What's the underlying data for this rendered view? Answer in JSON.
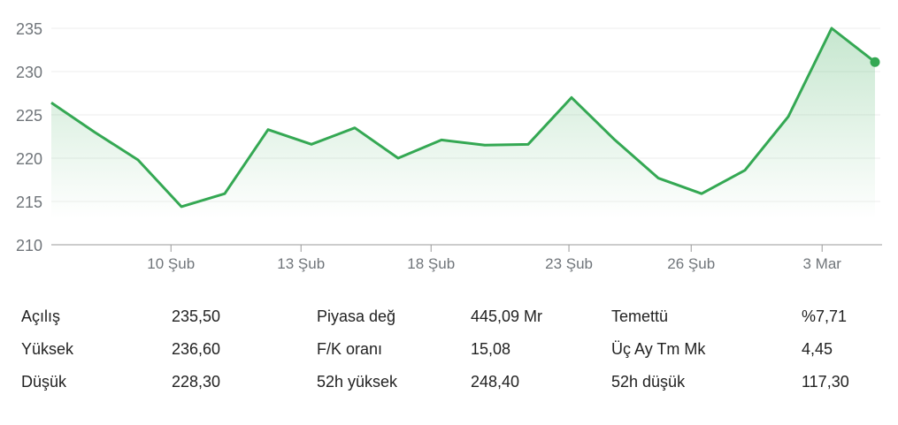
{
  "chart_data": {
    "type": "area",
    "ylim": [
      210,
      235
    ],
    "yticks": [
      210,
      215,
      220,
      225,
      230,
      235
    ],
    "x_index": [
      0,
      1,
      2,
      3,
      4,
      5,
      6,
      7,
      8,
      9,
      10,
      11,
      12,
      13,
      14,
      15,
      16,
      17,
      18,
      19
    ],
    "values": [
      226.4,
      223.0,
      219.8,
      214.4,
      215.9,
      223.3,
      221.6,
      223.5,
      220.0,
      222.1,
      221.5,
      221.6,
      227.0,
      222.1,
      217.7,
      215.9,
      218.6,
      224.8,
      235.0,
      231.1
    ],
    "xticks": [
      {
        "label": "10 Şub",
        "at": 2.76
      },
      {
        "label": "13 Şub",
        "at": 5.76
      },
      {
        "label": "18 Şub",
        "at": 8.76
      },
      {
        "label": "23 Şub",
        "at": 11.94
      },
      {
        "label": "26 Şub",
        "at": 14.76
      },
      {
        "label": "3 Mar",
        "at": 17.78
      }
    ],
    "line_color": "#34a853",
    "grid": true
  },
  "stats": [
    [
      {
        "label": "Açılış",
        "value": "235,50"
      },
      {
        "label": "Yüksek",
        "value": "236,60"
      },
      {
        "label": "Düşük",
        "value": "228,30"
      }
    ],
    [
      {
        "label": "Piyasa değ",
        "value": "445,09 Mr"
      },
      {
        "label": "F/K oranı",
        "value": "15,08"
      },
      {
        "label": "52h yüksek",
        "value": "248,40"
      }
    ],
    [
      {
        "label": "Temettü",
        "value": "%7,71"
      },
      {
        "label": "Üç Ay Tm Mk",
        "value": "4,45"
      },
      {
        "label": "52h düşük",
        "value": "117,30"
      }
    ]
  ]
}
